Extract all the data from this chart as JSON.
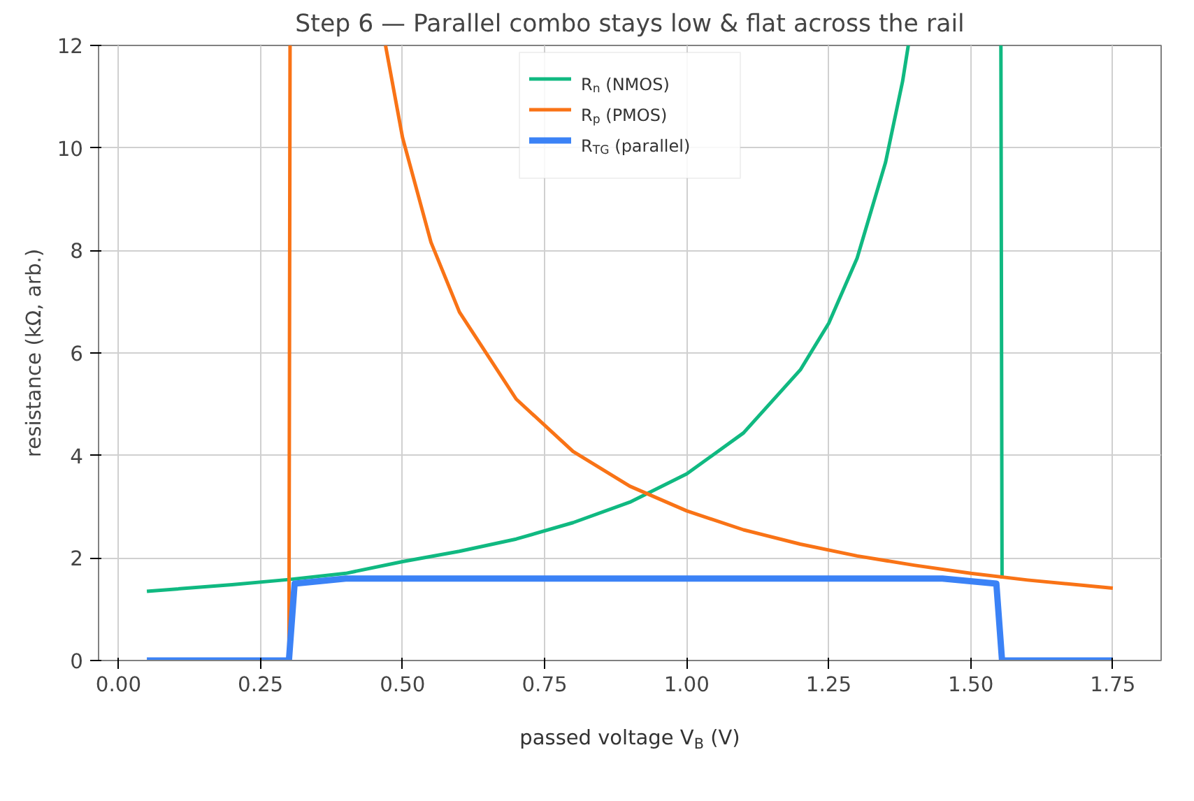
{
  "chart_data": {
    "type": "line",
    "title": "Step 6 — Parallel combo stays low & flat across the rail",
    "xlabel": "passed voltage V$_{B}$ (V)",
    "ylabel": "resistance (kΩ, arb.)",
    "xlim": [
      -0.035,
      1.835
    ],
    "ylim": [
      0,
      12
    ],
    "xticks": [
      {
        "value": 0,
        "label": "0.00"
      },
      {
        "value": 0.25,
        "label": "0.25"
      },
      {
        "value": 0.5,
        "label": "0.50"
      },
      {
        "value": 0.75,
        "label": "0.75"
      },
      {
        "value": 1,
        "label": "1.00"
      },
      {
        "value": 1.25,
        "label": "1.25"
      },
      {
        "value": 1.5,
        "label": "1.50"
      },
      {
        "value": 1.75,
        "label": "1.75"
      }
    ],
    "yticks": [
      0,
      2,
      4,
      6,
      8,
      10,
      12
    ],
    "grid": true,
    "legend": "top",
    "marker": "none",
    "line_style": "solid",
    "series": [
      {
        "name": "R$_{n}$ (NMOS)",
        "color": "#10b981",
        "x": [
          0.05,
          0.2,
          0.3,
          0.4,
          0.5,
          0.6,
          0.7,
          0.8,
          0.9,
          1.0,
          1.1,
          1.2,
          1.25,
          1.3,
          1.35,
          1.38,
          1.39,
          1.47,
          1.553,
          1.555
        ],
        "values": [
          1.35,
          1.48,
          1.58,
          1.7,
          1.93,
          2.13,
          2.37,
          2.69,
          3.09,
          3.64,
          4.44,
          5.67,
          6.58,
          7.85,
          9.72,
          11.3,
          12,
          null,
          12,
          1.6
        ]
      },
      {
        "name": "R$_{p}$ (PMOS)",
        "color": "#f97316",
        "x": [
          0.3,
          0.302,
          0.4,
          0.47,
          0.5,
          0.55,
          0.6,
          0.7,
          0.8,
          0.9,
          1.0,
          1.1,
          1.2,
          1.3,
          1.4,
          1.5,
          1.6,
          1.75
        ],
        "values": [
          0,
          12,
          null,
          12,
          10.2,
          8.16,
          6.8,
          5.1,
          4.08,
          3.4,
          2.92,
          2.55,
          2.27,
          2.04,
          1.86,
          1.7,
          1.57,
          1.41
        ]
      },
      {
        "name": "R$_{TG}$ (parallel)",
        "color": "#3b82f6",
        "x": [
          0.05,
          0.3,
          0.31,
          0.4,
          1.45,
          1.545,
          1.555,
          1.75
        ],
        "values": [
          0,
          0,
          1.5,
          1.6,
          1.6,
          1.5,
          0,
          0
        ]
      }
    ]
  }
}
